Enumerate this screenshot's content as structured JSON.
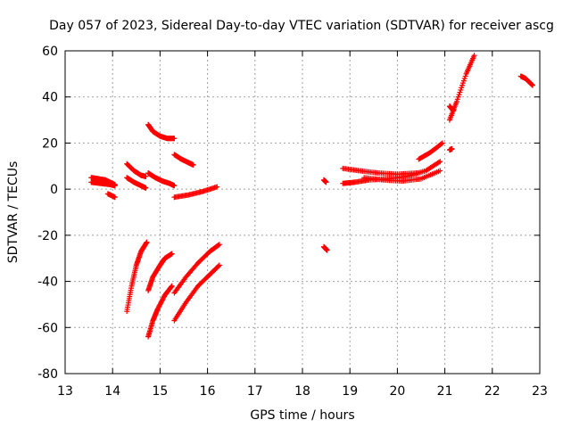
{
  "chart_data": {
    "type": "scatter",
    "title": "Day 057 of 2023, Sidereal Day-to-day VTEC variation (SDTVAR) for receiver ascg",
    "xlabel": "GPS time / hours",
    "ylabel": "SDTVAR / TECUs",
    "xlim": [
      13,
      23
    ],
    "ylim": [
      -80,
      60
    ],
    "xticks": [
      13,
      14,
      15,
      16,
      17,
      18,
      19,
      20,
      21,
      22,
      23
    ],
    "yticks": [
      -80,
      -60,
      -40,
      -20,
      0,
      20,
      40,
      60
    ],
    "grid": true,
    "marker": "+",
    "color": "#ff0000",
    "segments": [
      {
        "x": [
          13.55,
          13.7,
          13.85,
          14.05
        ],
        "y": [
          5,
          4.5,
          4,
          2
        ]
      },
      {
        "x": [
          13.55,
          13.75,
          13.95,
          14.05
        ],
        "y": [
          3,
          2.5,
          2,
          1.5
        ]
      },
      {
        "x": [
          13.9,
          14.05
        ],
        "y": [
          -2,
          -3.5
        ]
      },
      {
        "x": [
          14.3,
          14.45,
          14.6,
          14.7
        ],
        "y": [
          11,
          8,
          6,
          5.5
        ]
      },
      {
        "x": [
          14.3,
          14.45,
          14.6,
          14.7
        ],
        "y": [
          5,
          3,
          1.5,
          0.5
        ]
      },
      {
        "x": [
          14.3,
          14.4,
          14.5,
          14.6,
          14.72
        ],
        "y": [
          -53,
          -42,
          -33,
          -27,
          -23
        ]
      },
      {
        "x": [
          14.75,
          14.9,
          15.05,
          15.2,
          15.3
        ],
        "y": [
          7,
          5,
          3.5,
          2.5,
          1.5
        ]
      },
      {
        "x": [
          14.75,
          14.85,
          15.0,
          15.15,
          15.3
        ],
        "y": [
          28,
          25,
          23,
          22,
          22
        ]
      },
      {
        "x": [
          14.75,
          14.85,
          15.0,
          15.1,
          15.25
        ],
        "y": [
          -44,
          -38,
          -33,
          -30,
          -28
        ]
      },
      {
        "x": [
          14.75,
          14.85,
          14.95,
          15.1,
          15.25
        ],
        "y": [
          -64,
          -57,
          -52,
          -46,
          -42
        ]
      },
      {
        "x": [
          15.3,
          15.45,
          15.6,
          15.7
        ],
        "y": [
          15,
          13,
          11.5,
          10.5
        ]
      },
      {
        "x": [
          15.3,
          15.6,
          15.9,
          16.2
        ],
        "y": [
          -3.5,
          -2.5,
          -1,
          1
        ]
      },
      {
        "x": [
          15.3,
          15.55,
          15.8,
          16.05,
          16.25
        ],
        "y": [
          -45,
          -38,
          -32,
          -27,
          -24
        ]
      },
      {
        "x": [
          15.3,
          15.55,
          15.8,
          16.05,
          16.25
        ],
        "y": [
          -57,
          -49,
          -42,
          -37,
          -33
        ]
      },
      {
        "x": [
          18.45,
          18.5
        ],
        "y": [
          4,
          3
        ]
      },
      {
        "x": [
          18.45,
          18.52
        ],
        "y": [
          -25,
          -26.5
        ]
      },
      {
        "x": [
          18.85,
          19.2,
          19.6,
          20.0,
          20.4
        ],
        "y": [
          9,
          8,
          7,
          6.5,
          7
        ]
      },
      {
        "x": [
          18.85,
          19.1,
          19.4,
          19.8,
          20.2,
          20.6,
          20.9
        ],
        "y": [
          2.5,
          3,
          4,
          4.5,
          5.5,
          8,
          12
        ]
      },
      {
        "x": [
          19.3,
          19.7,
          20.1,
          20.5,
          20.9
        ],
        "y": [
          5,
          4,
          3.5,
          4.5,
          8
        ]
      },
      {
        "x": [
          20.45,
          20.7,
          20.95
        ],
        "y": [
          13,
          16,
          20
        ]
      },
      {
        "x": [
          21.1,
          21.25,
          21.45,
          21.62
        ],
        "y": [
          30,
          38,
          50,
          58
        ]
      },
      {
        "x": [
          21.1,
          21.18
        ],
        "y": [
          36,
          34
        ]
      },
      {
        "x": [
          21.1,
          21.15
        ],
        "y": [
          17,
          17.5
        ]
      },
      {
        "x": [
          22.6,
          22.7,
          22.85
        ],
        "y": [
          49,
          48,
          45
        ]
      }
    ]
  }
}
